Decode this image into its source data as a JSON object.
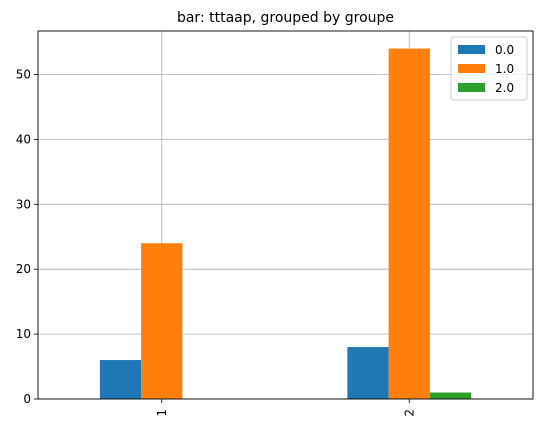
{
  "chart_data": {
    "type": "bar",
    "title": "bar: tttaap, grouped by groupe",
    "xlabel": "",
    "ylabel": "",
    "categories": [
      "1",
      "2"
    ],
    "series": [
      {
        "name": "0.0",
        "color": "#1f77b4",
        "values": [
          6,
          8
        ]
      },
      {
        "name": "1.0",
        "color": "#ff7f0e",
        "values": [
          24,
          54
        ]
      },
      {
        "name": "2.0",
        "color": "#2ca02c",
        "values": [
          0,
          1
        ]
      }
    ],
    "ylim": [
      0,
      56.7
    ],
    "yticks": [
      0,
      10,
      20,
      30,
      40,
      50
    ],
    "grid": true,
    "legend": "top-right"
  }
}
